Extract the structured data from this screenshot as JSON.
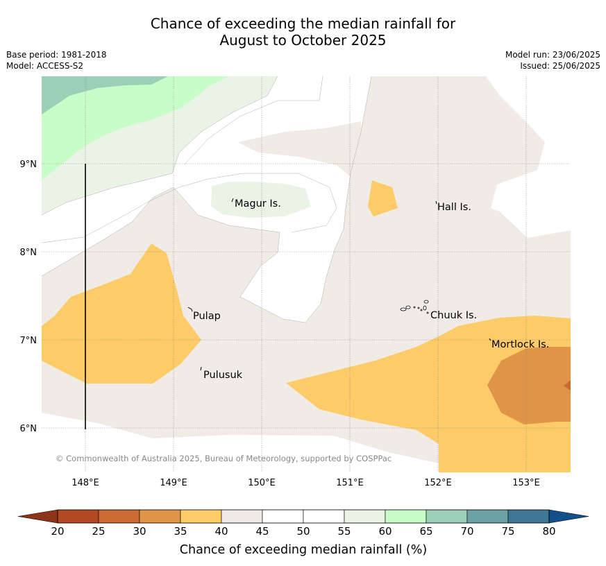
{
  "title": {
    "line1": "Chance of exceeding the median rainfall for",
    "line2": "August to October 2025"
  },
  "info": {
    "base_period": "Base period: 1981-2018",
    "model": "Model: ACCESS-S2",
    "model_run": "Model run: 23/06/2025",
    "issued": "Issued: 25/06/2025"
  },
  "map": {
    "x_ticks": [
      "148°E",
      "149°E",
      "150°E",
      "151°E",
      "152°E",
      "153°E"
    ],
    "y_ticks": [
      "9°N",
      "8°N",
      "7°N",
      "6°N"
    ],
    "places": {
      "magur": "Magur Is.",
      "hall": "Hall Is.",
      "pulap": "Pulap",
      "chuuk": "Chuuk Is.",
      "mortlock": "Mortlock Is.",
      "pulusuk": "Pulusuk"
    },
    "copyright": "© Commonwealth of Australia 2025, Bureau of Meteorology, supported by COSPPac"
  },
  "colorbar": {
    "label": "Chance of exceeding median rainfall (%)",
    "ticks": [
      "20",
      "25",
      "30",
      "35",
      "40",
      "45",
      "50",
      "55",
      "60",
      "65",
      "70",
      "75",
      "80"
    ],
    "bins": [
      {
        "range": "20-25",
        "color": "#b34a24"
      },
      {
        "range": "25-30",
        "color": "#cc6a33"
      },
      {
        "range": "30-35",
        "color": "#e09447"
      },
      {
        "range": "35-40",
        "color": "#fdcb68"
      },
      {
        "range": "40-45",
        "color": "#f0ebe5"
      },
      {
        "range": "45-50",
        "color": "#ffffff"
      },
      {
        "range": "50-55",
        "color": "#ffffff"
      },
      {
        "range": "55-60",
        "color": "#e9f4e7"
      },
      {
        "range": "60-65",
        "color": "#c8fdc8"
      },
      {
        "range": "65-70",
        "color": "#9bcfb8"
      },
      {
        "range": "70-75",
        "color": "#6ba3a5"
      },
      {
        "range": "75-80",
        "color": "#3f7694"
      }
    ],
    "under_color": "#8c3518",
    "over_color": "#134f8a"
  }
}
